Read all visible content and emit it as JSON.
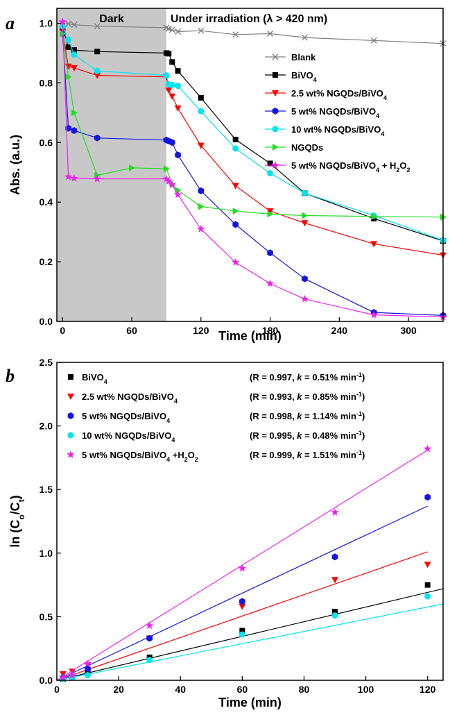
{
  "chart_data": [
    {
      "panel": "a",
      "type": "line",
      "xlabel": "Time (min)",
      "ylabel": "Abs. (a.u.)",
      "xlim": [
        -5,
        330
      ],
      "ylim": [
        0,
        1.05
      ],
      "xticks": [
        "0",
        "60",
        "120",
        "180",
        "240",
        "300"
      ],
      "yticks": [
        "0.0",
        "0.2",
        "0.4",
        "0.6",
        "0.8",
        "1.0"
      ],
      "dark_region": {
        "label": "Dark",
        "x_range": [
          -5,
          90
        ],
        "color": "#c8c8c8"
      },
      "irradiation_label": "Under irradiation (λ > 420 nm)",
      "legend_position": "top-right",
      "series": [
        {
          "name": "Blank",
          "color": "#808080",
          "marker": "x",
          "x": [
            0,
            5,
            10,
            30,
            90,
            92,
            95,
            100,
            120,
            150,
            180,
            210,
            270,
            330
          ],
          "y": [
            1.0,
            0.998,
            0.995,
            0.99,
            0.985,
            0.982,
            0.978,
            0.972,
            0.975,
            0.962,
            0.965,
            0.952,
            0.942,
            0.932
          ]
        },
        {
          "name": "BiVO4",
          "color": "#000000",
          "marker": "square",
          "x": [
            0,
            5,
            10,
            30,
            90,
            92,
            95,
            100,
            120,
            150,
            180,
            210,
            270,
            330
          ],
          "y": [
            0.985,
            0.92,
            0.91,
            0.905,
            0.9,
            0.898,
            0.87,
            0.84,
            0.75,
            0.61,
            0.53,
            0.43,
            0.345,
            0.27
          ]
        },
        {
          "name": "2.5 wt% NGQDs/BiVO4",
          "color": "#ff0000",
          "marker": "triangle-down",
          "x": [
            0,
            5,
            10,
            30,
            90,
            92,
            95,
            100,
            120,
            150,
            180,
            210,
            270,
            330
          ],
          "y": [
            0.97,
            0.855,
            0.85,
            0.825,
            0.82,
            0.775,
            0.755,
            0.715,
            0.59,
            0.455,
            0.37,
            0.33,
            0.26,
            0.222
          ]
        },
        {
          "name": "5 wt% NGQDs/BiVO4",
          "color": "#1515e0",
          "marker": "hexagon",
          "x": [
            0,
            5,
            10,
            30,
            90,
            92,
            95,
            100,
            120,
            150,
            180,
            210,
            270,
            330
          ],
          "y": [
            0.965,
            0.648,
            0.64,
            0.615,
            0.608,
            0.605,
            0.6,
            0.558,
            0.438,
            0.325,
            0.23,
            0.143,
            0.03,
            0.02
          ]
        },
        {
          "name": "10 wt% NGQDs/BiVO4",
          "color": "#00e5ee",
          "marker": "circle",
          "x": [
            0,
            5,
            10,
            30,
            90,
            92,
            95,
            100,
            120,
            150,
            180,
            210,
            270,
            330
          ],
          "y": [
            0.99,
            0.945,
            0.895,
            0.84,
            0.825,
            0.795,
            0.793,
            0.79,
            0.705,
            0.58,
            0.497,
            0.43,
            0.355,
            0.272
          ]
        },
        {
          "name": "NGQDs",
          "color": "#22dd22",
          "marker": "triangle-right",
          "x": [
            0,
            5,
            10,
            30,
            60,
            90,
            95,
            100,
            120,
            150,
            180,
            210,
            270,
            330
          ],
          "y": [
            0.965,
            0.82,
            0.7,
            0.49,
            0.515,
            0.512,
            0.462,
            0.44,
            0.385,
            0.37,
            0.36,
            0.355,
            0.352,
            0.35
          ]
        },
        {
          "name": "5 wt% NGQDs/BiVO4 + H2O2",
          "color": "#ee22ee",
          "marker": "star",
          "x": [
            0,
            5,
            10,
            30,
            90,
            92,
            95,
            100,
            120,
            150,
            180,
            210,
            270,
            330
          ],
          "y": [
            1.005,
            0.485,
            0.48,
            0.478,
            0.478,
            0.47,
            0.458,
            0.425,
            0.31,
            0.198,
            0.127,
            0.075,
            0.022,
            0.015
          ]
        }
      ]
    },
    {
      "panel": "b",
      "type": "scatter",
      "xlabel": "Time (min)",
      "ylabel": "ln (Co/Ct)",
      "xlim": [
        0,
        125
      ],
      "ylim": [
        0,
        2.5
      ],
      "xticks": [
        "0",
        "20",
        "40",
        "60",
        "80",
        "100",
        "120"
      ],
      "yticks": [
        "0.0",
        "0.5",
        "1.0",
        "1.5",
        "2.0",
        "2.5"
      ],
      "legend_position": "top-left",
      "series": [
        {
          "name": "BiVO4",
          "color": "#000000",
          "marker": "square",
          "fit_note": "(R = 0.997, k = 0.51% min-1)",
          "fit_line_end": [
            125,
            0.72
          ],
          "x": [
            2,
            5,
            10,
            30,
            60,
            90,
            120
          ],
          "y": [
            0.01,
            0.03,
            0.06,
            0.18,
            0.39,
            0.54,
            0.75
          ]
        },
        {
          "name": "2.5 wt% NGQDs/BiVO4",
          "color": "#ff0000",
          "marker": "triangle-down",
          "fit_note": "(R = 0.993, k = 0.85% min-1)",
          "fit_line_end": [
            120,
            1.01
          ],
          "x": [
            2,
            5,
            10,
            30,
            60,
            90,
            120
          ],
          "y": [
            0.05,
            0.07,
            0.12,
            0.33,
            0.58,
            0.79,
            0.91
          ]
        },
        {
          "name": "5 wt% NGQDs/BiVO4",
          "color": "#1515e0",
          "marker": "hexagon",
          "fit_note": "(R = 0.998, k = 1.14% min-1)",
          "fit_line_end": [
            120,
            1.37
          ],
          "x": [
            2,
            5,
            10,
            30,
            60,
            90,
            120
          ],
          "y": [
            0.02,
            0.03,
            0.09,
            0.33,
            0.62,
            0.97,
            1.44
          ]
        },
        {
          "name": "10 wt% NGQDs/BiVO4",
          "color": "#00e5ee",
          "marker": "circle",
          "fit_note": "(R = 0.995, k = 0.48% min-1)",
          "fit_line_end": [
            125,
            0.6
          ],
          "x": [
            2,
            5,
            10,
            30,
            60,
            90,
            120
          ],
          "y": [
            0.01,
            0.02,
            0.04,
            0.16,
            0.36,
            0.51,
            0.66
          ]
        },
        {
          "name": "5 wt% NGQDs/BiVO4 +H2O2",
          "color": "#ee22ee",
          "marker": "star",
          "fit_note": "(R = 0.999, k = 1.51% min-1)",
          "fit_line_end": [
            120,
            1.81
          ],
          "x": [
            2,
            5,
            10,
            30,
            60,
            90,
            120
          ],
          "y": [
            0.02,
            0.04,
            0.13,
            0.43,
            0.88,
            1.32,
            1.82
          ]
        }
      ]
    }
  ]
}
